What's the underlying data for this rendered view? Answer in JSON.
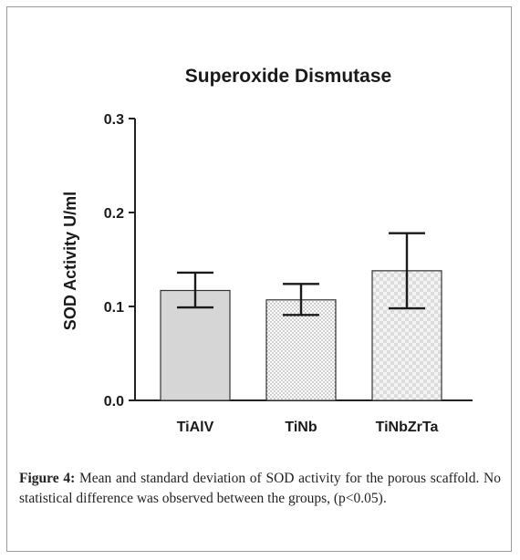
{
  "chart_data": {
    "type": "bar",
    "title": "Superoxide Dismutase",
    "xlabel": "",
    "ylabel": "SOD Activity U/ml",
    "categories": [
      "TiAlV",
      "TiNb",
      "TiNbZrTa"
    ],
    "values": [
      0.117,
      0.107,
      0.138
    ],
    "error_upper": [
      0.136,
      0.124,
      0.178
    ],
    "error_lower": [
      0.099,
      0.091,
      0.098
    ],
    "ylim": [
      0.0,
      0.3
    ],
    "yticks": [
      0.0,
      0.1,
      0.2,
      0.3
    ],
    "ytick_labels": [
      "0.0",
      "0.1",
      "0.2",
      "0.3"
    ],
    "grid": false,
    "bar_fills": [
      "solid-gray",
      "dotted",
      "checkered"
    ],
    "colors": {
      "solid": "#d6d6d6",
      "dots": "#555555",
      "checker": "#e0e0e0",
      "axis": "#222222"
    }
  },
  "caption": {
    "label": "Figure 4:",
    "text": " Mean and standard deviation of SOD activity for the porous scaffold. No statistical difference was observed between the groups, (p<0.05)."
  }
}
